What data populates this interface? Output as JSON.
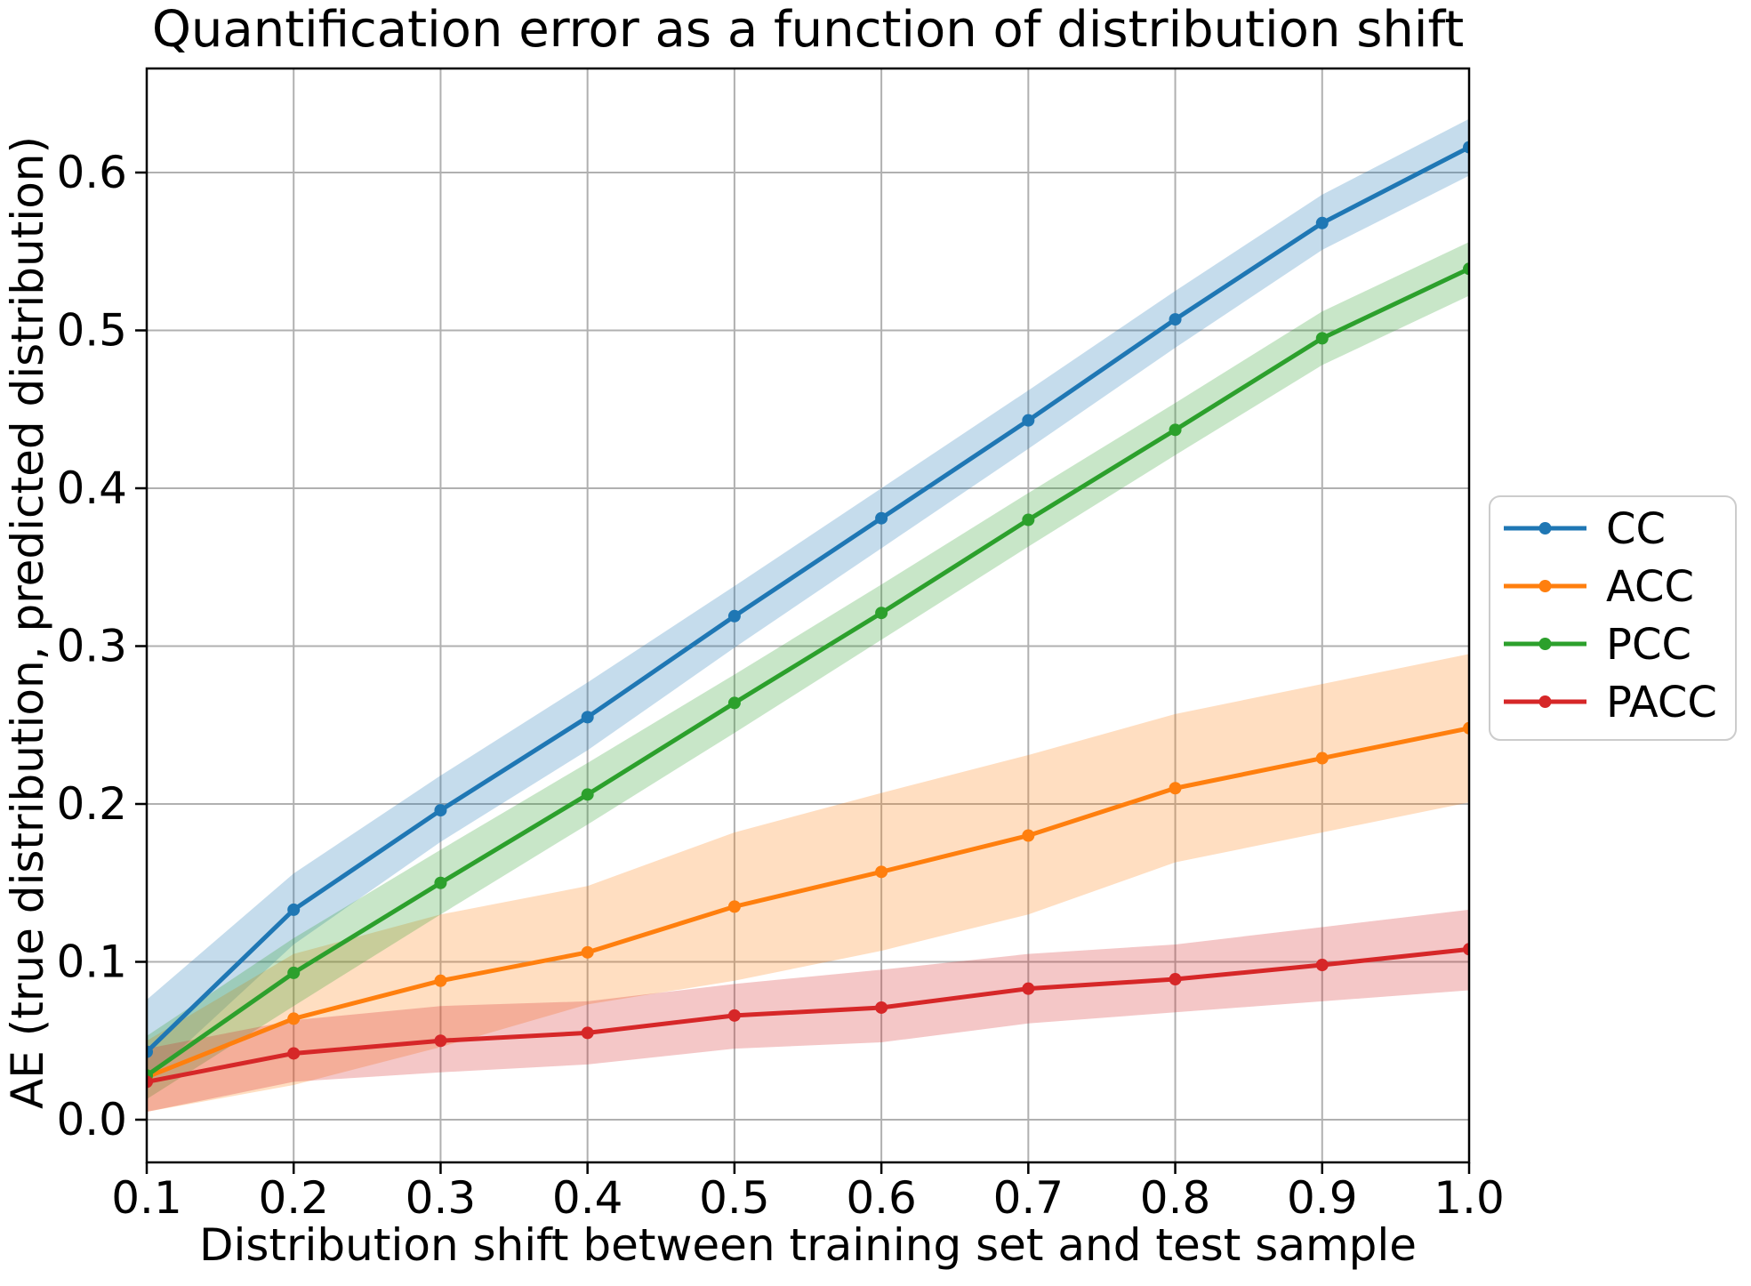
{
  "figure": {
    "background": "#ffffff",
    "grid_color": "#b0b0b0",
    "spine_color": "#000000",
    "legend_border_color": "#cccccc",
    "legend_background": "#ffffff"
  },
  "chart_data": {
    "type": "line",
    "title": "Quantification error as a function of distribution shift",
    "xlabel": "Distribution shift between training set and test sample",
    "ylabel": "AE (true distribution, predicted distribution)",
    "grid": true,
    "legend_position": "outside right, upper",
    "xlim": [
      0.1,
      1.0
    ],
    "ylim": [
      -0.027,
      0.666
    ],
    "x": [
      0.1,
      0.2,
      0.3,
      0.4,
      0.5,
      0.6,
      0.7,
      0.8,
      0.9,
      1.0
    ],
    "xtick_labels": [
      "0.1",
      "0.2",
      "0.3",
      "0.4",
      "0.5",
      "0.6",
      "0.7",
      "0.8",
      "0.9",
      "1.0"
    ],
    "ytick_values": [
      0.0,
      0.1,
      0.2,
      0.3,
      0.4,
      0.5,
      0.6
    ],
    "ytick_labels": [
      "0.0",
      "0.1",
      "0.2",
      "0.3",
      "0.4",
      "0.5",
      "0.6"
    ],
    "series": [
      {
        "name": "CC",
        "color": "#1f77b4",
        "values": [
          0.043,
          0.133,
          0.196,
          0.255,
          0.319,
          0.381,
          0.443,
          0.507,
          0.568,
          0.616
        ],
        "upper": [
          0.076,
          0.156,
          0.218,
          0.277,
          0.338,
          0.4,
          0.462,
          0.525,
          0.586,
          0.634
        ],
        "lower": [
          0.025,
          0.111,
          0.176,
          0.234,
          0.299,
          0.362,
          0.425,
          0.489,
          0.551,
          0.598
        ]
      },
      {
        "name": "ACC",
        "color": "#ff7f0e",
        "values": [
          0.027,
          0.064,
          0.088,
          0.106,
          0.135,
          0.157,
          0.18,
          0.21,
          0.229,
          0.248
        ],
        "upper": [
          0.05,
          0.105,
          0.13,
          0.148,
          0.182,
          0.207,
          0.231,
          0.257,
          0.276,
          0.295
        ],
        "lower": [
          0.005,
          0.022,
          0.046,
          0.073,
          0.088,
          0.107,
          0.13,
          0.163,
          0.182,
          0.201
        ]
      },
      {
        "name": "PCC",
        "color": "#2ca02c",
        "values": [
          0.028,
          0.093,
          0.15,
          0.206,
          0.264,
          0.321,
          0.38,
          0.437,
          0.495,
          0.539
        ],
        "upper": [
          0.053,
          0.115,
          0.171,
          0.226,
          0.282,
          0.339,
          0.397,
          0.454,
          0.512,
          0.556
        ],
        "lower": [
          0.013,
          0.072,
          0.13,
          0.187,
          0.245,
          0.304,
          0.363,
          0.421,
          0.478,
          0.522
        ]
      },
      {
        "name": "PACC",
        "color": "#d62728",
        "values": [
          0.024,
          0.042,
          0.05,
          0.055,
          0.066,
          0.071,
          0.083,
          0.089,
          0.098,
          0.108
        ],
        "upper": [
          0.045,
          0.063,
          0.072,
          0.075,
          0.086,
          0.095,
          0.105,
          0.111,
          0.122,
          0.133
        ],
        "lower": [
          0.005,
          0.024,
          0.03,
          0.035,
          0.045,
          0.049,
          0.061,
          0.068,
          0.075,
          0.082
        ]
      }
    ]
  }
}
